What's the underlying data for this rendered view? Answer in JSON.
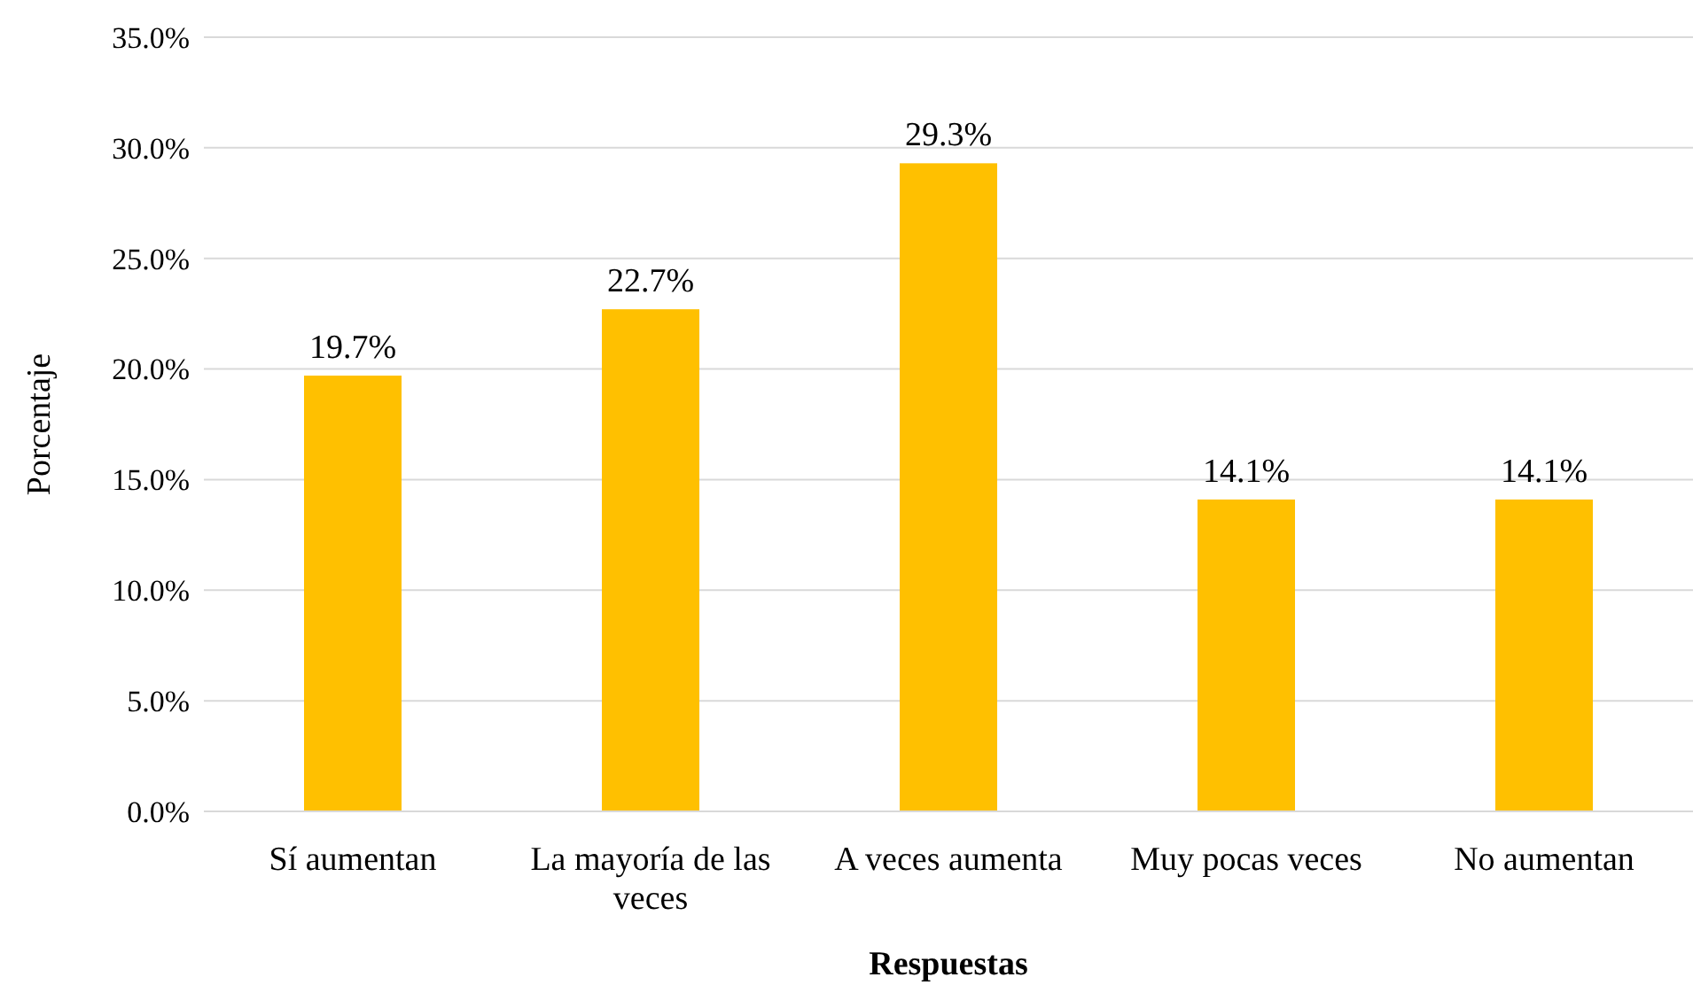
{
  "chart_data": {
    "type": "bar",
    "xlabel": "Respuestas",
    "ylabel": "Porcentaje",
    "categories": [
      "Sí aumentan",
      "La mayoría de las veces",
      "A veces aumenta",
      "Muy pocas veces",
      "No aumentan"
    ],
    "values": [
      19.7,
      22.7,
      29.3,
      14.1,
      14.1
    ],
    "value_labels": [
      "19.7%",
      "22.7%",
      "29.3%",
      "14.1%",
      "14.1%"
    ],
    "color": "#ffc000",
    "ylim": [
      0,
      35
    ],
    "yticks": [
      {
        "value": 0,
        "label": "0.0%"
      },
      {
        "value": 5,
        "label": "5.0%"
      },
      {
        "value": 10,
        "label": "10.0%"
      },
      {
        "value": 15,
        "label": "15.0%"
      },
      {
        "value": 20,
        "label": "20.0%"
      },
      {
        "value": 25,
        "label": "25.0%"
      },
      {
        "value": 30,
        "label": "30.0%"
      },
      {
        "value": 35,
        "label": "35.0%"
      }
    ],
    "grid": "y"
  }
}
